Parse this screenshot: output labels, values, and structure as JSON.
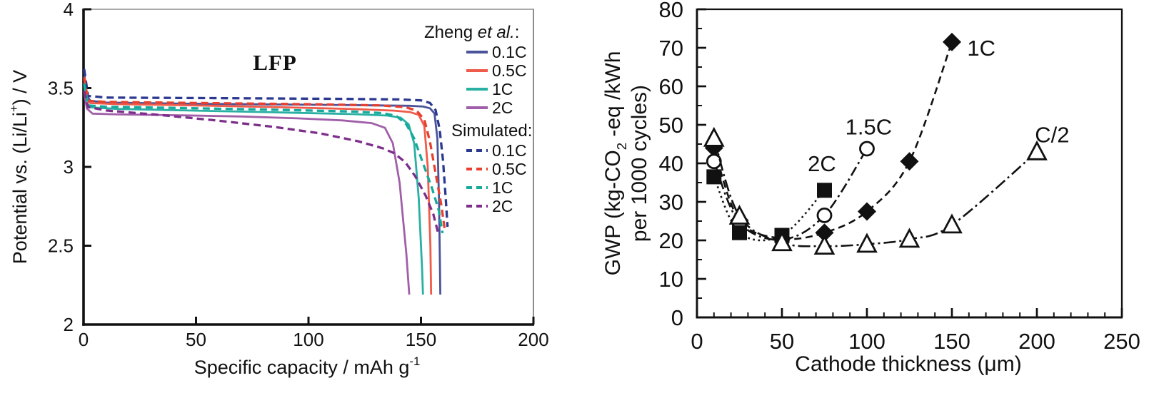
{
  "figure": {
    "left": {
      "title": "LFP",
      "ylabel_pre": "Potential vs. (Li/Li",
      "ylabel_sup": "+",
      "ylabel_post": ") / V",
      "xlabel_pre": "Specific capacity / mAh g",
      "xlabel_sup": "-1",
      "legend": {
        "group1_prefix": "Zheng ",
        "group1_italic": "et al.",
        "group1_suffix": ":",
        "group2": "Simulated:",
        "items1": [
          "0.1C",
          "0.5C",
          "1C",
          "2C"
        ],
        "items2": [
          "0.1C",
          "0.5C",
          "1C",
          "2C"
        ]
      }
    },
    "right": {
      "ylabel_line1_pre": "GWP (kg-CO",
      "ylabel_sub": "2",
      "ylabel_line1_post": " -eq /kWh",
      "ylabel_line2": "per 1000 cycles)",
      "xlabel": "Cathode thickness (μm)"
    }
  },
  "chart_data": [
    {
      "type": "line",
      "title": "LFP",
      "xlabel": "Specific capacity / mAh g^-1",
      "ylabel": "Potential vs. (Li/Li+) / V",
      "xlim": [
        0,
        200
      ],
      "ylim": [
        2,
        4
      ],
      "xticks": [
        0,
        50,
        100,
        150,
        200
      ],
      "xtick_labels": [
        "0",
        "50",
        "100",
        "150",
        "200"
      ],
      "yticks": [
        4,
        3.5,
        3,
        2.5,
        2
      ],
      "ytick_labels": [
        "4",
        "3.5",
        "3",
        "2.5",
        "2"
      ],
      "legend_position": "top-right-inside",
      "grid": false,
      "legend_groups": [
        {
          "title": "Zheng et al.:",
          "style": "solid",
          "entries": [
            "0.1C",
            "0.5C",
            "1C",
            "2C"
          ]
        },
        {
          "title": "Simulated:",
          "style": "dashed",
          "entries": [
            "0.1C",
            "0.5C",
            "1C",
            "2C"
          ]
        }
      ],
      "series": [
        {
          "name": "Zheng 0.1C",
          "label": "0.1C",
          "color": "#4a549b",
          "dash": null,
          "points": [
            [
              0.3,
              3.62
            ],
            [
              1,
              3.46
            ],
            [
              3,
              3.42
            ],
            [
              10,
              3.408
            ],
            [
              40,
              3.402
            ],
            [
              80,
              3.397
            ],
            [
              120,
              3.392
            ],
            [
              145,
              3.388
            ],
            [
              151,
              3.383
            ],
            [
              154,
              3.372
            ],
            [
              156,
              3.34
            ],
            [
              157.3,
              3.18
            ],
            [
              158,
              2.8
            ],
            [
              158.4,
              2.4
            ],
            [
              158.6,
              2.19
            ]
          ]
        },
        {
          "name": "Zheng 0.5C",
          "label": "0.5C",
          "color": "#ef5b4a",
          "dash": null,
          "points": [
            [
              0.3,
              3.56
            ],
            [
              1,
              3.43
            ],
            [
              3,
              3.405
            ],
            [
              15,
              3.398
            ],
            [
              50,
              3.39
            ],
            [
              90,
              3.378
            ],
            [
              120,
              3.367
            ],
            [
              138,
              3.357
            ],
            [
              145,
              3.348
            ],
            [
              149,
              3.33
            ],
            [
              151.5,
              3.26
            ],
            [
              153,
              3.0
            ],
            [
              154.2,
              2.5
            ],
            [
              154.5,
              2.19
            ]
          ]
        },
        {
          "name": "Zheng 1C",
          "label": "1C",
          "color": "#29b0a3",
          "dash": null,
          "points": [
            [
              0.3,
              3.52
            ],
            [
              1,
              3.41
            ],
            [
              3,
              3.378
            ],
            [
              15,
              3.368
            ],
            [
              50,
              3.357
            ],
            [
              90,
              3.345
            ],
            [
              120,
              3.335
            ],
            [
              135,
              3.326
            ],
            [
              141,
              3.312
            ],
            [
              144.5,
              3.27
            ],
            [
              147,
              3.15
            ],
            [
              149,
              2.8
            ],
            [
              150.5,
              2.35
            ],
            [
              150.9,
              2.19
            ]
          ]
        },
        {
          "name": "Zheng 2C",
          "label": "2C",
          "color": "#a05fa8",
          "dash": null,
          "points": [
            [
              0.3,
              3.47
            ],
            [
              1.5,
              3.37
            ],
            [
              4,
              3.338
            ],
            [
              15,
              3.333
            ],
            [
              40,
              3.328
            ],
            [
              70,
              3.32
            ],
            [
              95,
              3.308
            ],
            [
              115,
              3.295
            ],
            [
              128,
              3.278
            ],
            [
              134,
              3.248
            ],
            [
              137.5,
              3.15
            ],
            [
              140.5,
              2.9
            ],
            [
              143.5,
              2.45
            ],
            [
              144.8,
              2.19
            ]
          ]
        },
        {
          "name": "Simulated 0.1C",
          "label": "0.1C",
          "color": "#2b3990",
          "dash": "10 6",
          "points": [
            [
              0.3,
              3.62
            ],
            [
              2,
              3.45
            ],
            [
              10,
              3.44
            ],
            [
              60,
              3.436
            ],
            [
              110,
              3.432
            ],
            [
              140,
              3.428
            ],
            [
              150,
              3.422
            ],
            [
              154,
              3.406
            ],
            [
              156.5,
              3.36
            ],
            [
              158.3,
              3.24
            ],
            [
              159.8,
              3.04
            ],
            [
              161,
              2.8
            ],
            [
              161.8,
              2.62
            ]
          ]
        },
        {
          "name": "Simulated 0.5C",
          "label": "0.5C",
          "color": "#e8402f",
          "dash": "10 6",
          "points": [
            [
              0.3,
              3.57
            ],
            [
              2,
              3.42
            ],
            [
              10,
              3.412
            ],
            [
              60,
              3.404
            ],
            [
              105,
              3.397
            ],
            [
              132,
              3.39
            ],
            [
              143,
              3.379
            ],
            [
              148,
              3.358
            ],
            [
              151.5,
              3.3
            ],
            [
              154,
              3.16
            ],
            [
              156.5,
              2.96
            ],
            [
              159,
              2.76
            ],
            [
              160.6,
              2.6
            ]
          ]
        },
        {
          "name": "Simulated 1C",
          "label": "1C",
          "color": "#16a99c",
          "dash": "10 6",
          "points": [
            [
              0.3,
              3.53
            ],
            [
              2,
              3.39
            ],
            [
              10,
              3.382
            ],
            [
              50,
              3.372
            ],
            [
              90,
              3.361
            ],
            [
              120,
              3.351
            ],
            [
              133,
              3.341
            ],
            [
              139,
              3.324
            ],
            [
              143.5,
              3.27
            ],
            [
              147,
              3.18
            ],
            [
              151,
              3.02
            ],
            [
              155,
              2.86
            ],
            [
              158,
              2.72
            ],
            [
              159.6,
              2.58
            ]
          ]
        },
        {
          "name": "Simulated 2C",
          "label": "2C",
          "color": "#7c2e8a",
          "dash": "10 6",
          "points": [
            [
              0.3,
              3.48
            ],
            [
              2,
              3.38
            ],
            [
              10,
              3.358
            ],
            [
              35,
              3.328
            ],
            [
              60,
              3.293
            ],
            [
              85,
              3.253
            ],
            [
              105,
              3.213
            ],
            [
              122,
              3.163
            ],
            [
              133,
              3.118
            ],
            [
              138,
              3.088
            ],
            [
              143,
              3.03
            ],
            [
              147.5,
              2.94
            ],
            [
              152,
              2.82
            ],
            [
              155.5,
              2.7
            ],
            [
              157.8,
              2.57
            ]
          ]
        }
      ]
    },
    {
      "type": "scatter",
      "title": "",
      "xlabel": "Cathode thickness (μm)",
      "ylabel": "GWP (kg-CO2 -eq /kWh per 1000 cycles)",
      "xlim": [
        0,
        250
      ],
      "ylim": [
        0,
        80
      ],
      "xticks": [
        0,
        50,
        100,
        150,
        200,
        250
      ],
      "xtick_labels": [
        "0",
        "50",
        "100",
        "150",
        "200",
        "250"
      ],
      "yticks": [
        0,
        10,
        20,
        30,
        40,
        50,
        60,
        70,
        80
      ],
      "ytick_labels": [
        "0",
        "10",
        "20",
        "30",
        "40",
        "50",
        "60",
        "70",
        "80"
      ],
      "x_minor_step": 10,
      "y_minor_step": 5,
      "grid": false,
      "series": [
        {
          "name": "1C",
          "marker": "diamond-filled",
          "line": "dashed",
          "dash": "10 6",
          "color": "#111111",
          "points": [
            [
              10,
              44
            ],
            [
              25,
              25.2
            ],
            [
              50,
              20.5
            ],
            [
              75,
              22
            ],
            [
              100,
              27.5
            ],
            [
              125,
              40.5
            ],
            [
              150,
              71.5
            ]
          ],
          "label": {
            "text": "1C",
            "x": 159,
            "y": 70,
            "anchor": "start"
          }
        },
        {
          "name": "1.5C",
          "marker": "circle-open",
          "line": "dash-dot",
          "dash": "14 5 3 5",
          "color": "#111111",
          "points": [
            [
              10,
              40.5
            ],
            [
              25,
              24.6
            ],
            [
              50,
              20.2
            ],
            [
              75,
              26.5
            ],
            [
              100,
              43.8
            ]
          ],
          "label": {
            "text": "1.5C",
            "x": 101,
            "y": 49.5,
            "anchor": "middle"
          }
        },
        {
          "name": "2C",
          "marker": "square-filled",
          "line": "dotted",
          "dash": "2.6 4.6",
          "color": "#111111",
          "points": [
            [
              10,
              36.5
            ],
            [
              25,
              22
            ],
            [
              50,
              21.3
            ],
            [
              75,
              33
            ]
          ],
          "label": {
            "text": "2C",
            "x": 73.5,
            "y": 40,
            "anchor": "middle"
          }
        },
        {
          "name": "C/2",
          "marker": "triangle-open",
          "line": "dash-dot",
          "dash": "17 5 3 5",
          "color": "#111111",
          "points": [
            [
              10,
              46.5
            ],
            [
              25,
              26.3
            ],
            [
              50,
              19.4
            ],
            [
              75,
              18.5
            ],
            [
              100,
              19
            ],
            [
              125,
              20.3
            ],
            [
              150,
              24
            ],
            [
              200,
              43
            ]
          ],
          "label": {
            "text": "C/2",
            "x": 209,
            "y": 47.5,
            "anchor": "middle"
          }
        }
      ]
    }
  ]
}
